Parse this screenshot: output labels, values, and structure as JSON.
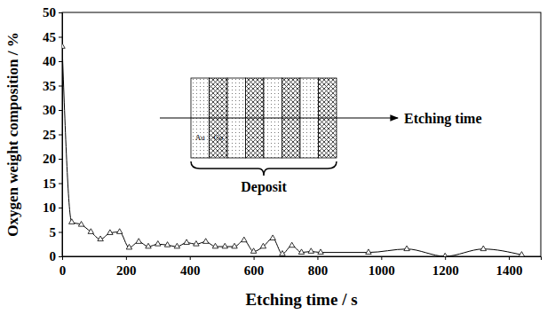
{
  "chart_data": {
    "type": "line",
    "xlabel": "Etching time / s",
    "ylabel": "Oxygen weight composition / %",
    "annotations": [
      "Etching time",
      "Deposit",
      "Au",
      "Co"
    ],
    "x": [
      0,
      30,
      60,
      90,
      120,
      150,
      180,
      210,
      240,
      270,
      300,
      330,
      360,
      390,
      420,
      450,
      480,
      510,
      540,
      570,
      600,
      630,
      660,
      690,
      720,
      750,
      780,
      810,
      960,
      1080,
      1200,
      1320,
      1440
    ],
    "series": [
      {
        "name": "Oxygen",
        "color": "#000000",
        "marker": "triangle",
        "line_style": "solid",
        "values": [
          43,
          7,
          6.5,
          5,
          3.5,
          4.8,
          5,
          1.8,
          3,
          2,
          2.5,
          2.3,
          2,
          2.8,
          2.5,
          3,
          2,
          2,
          2,
          3.3,
          1,
          2,
          3.7,
          0.5,
          2.2,
          0.8,
          1,
          0.8,
          0.8,
          1.5,
          0,
          1.5,
          0.3
        ]
      }
    ],
    "xlim": [
      0,
      1500
    ],
    "xticks": [
      0,
      200,
      400,
      600,
      800,
      1000,
      1200,
      1400
    ],
    "ylim": [
      0,
      50
    ],
    "yticks": [
      0,
      5,
      10,
      15,
      20,
      25,
      30,
      35,
      40,
      45,
      50
    ],
    "grid": false
  }
}
